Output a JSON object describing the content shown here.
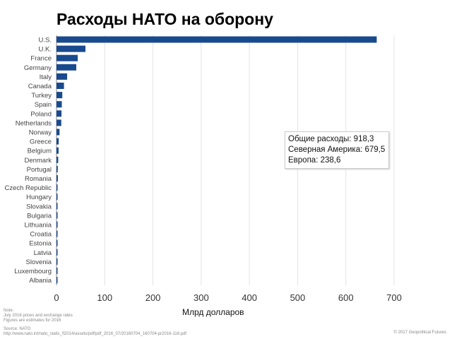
{
  "chart_data": {
    "type": "bar",
    "orientation": "horizontal",
    "title": "Расходы НАТО на оборону",
    "xlabel": "Млрд долларов",
    "ylabel": "",
    "xlim": [
      0,
      700
    ],
    "xticks": [
      "0",
      "100",
      "200",
      "300",
      "400",
      "500",
      "600",
      "700"
    ],
    "grid": true,
    "bar_color": "#1a4a8e",
    "categories": [
      "U.S.",
      "U.K.",
      "France",
      "Germany",
      "Italy",
      "Canada",
      "Turkey",
      "Spain",
      "Poland",
      "Netherlands",
      "Norway",
      "Greece",
      "Belgium",
      "Denmark",
      "Portugal",
      "Romania",
      "Czech Republic",
      "Hungary",
      "Slovakia",
      "Bulgaria",
      "Lithuania",
      "Croatia",
      "Estonia",
      "Latvia",
      "Slovenia",
      "Luxembourg",
      "Albania"
    ],
    "values": [
      664,
      60,
      44,
      41,
      22,
      15.5,
      12,
      11,
      10.3,
      9.9,
      6.3,
      4.6,
      4.3,
      3.5,
      2.6,
      2.8,
      2.0,
      1.1,
      1.0,
      0.7,
      0.6,
      0.6,
      0.5,
      0.4,
      0.4,
      0.3,
      0.1
    ],
    "annotation": [
      "Общие расходы: 918,3",
      "Северная Америка: 679,5",
      "Европа: 238,6"
    ]
  },
  "footer": {
    "note": [
      "Note:",
      "July 2016 prices and exchange rates",
      "Figures are estimates for 2016"
    ],
    "source": [
      "Source: NATO",
      "http://www.nato.int/nato_static_fl2014/assets/pdf/pdf_2016_07/20160704_160704-pr2016-116.pdf"
    ],
    "copyright": "© 2017 Geopolitical Futures"
  }
}
